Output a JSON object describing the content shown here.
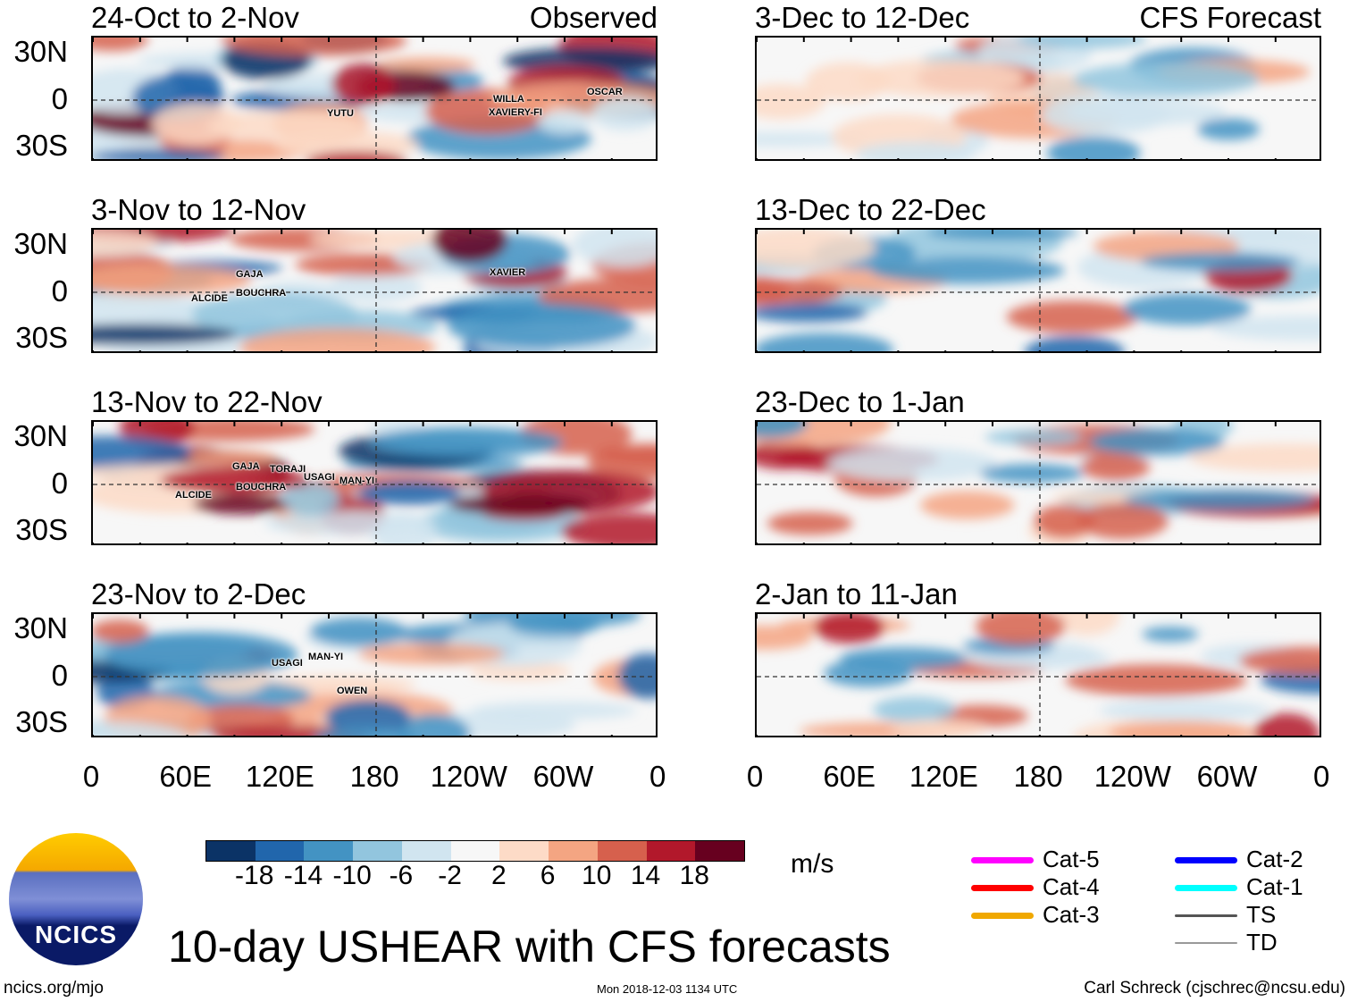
{
  "figure_title": "10-day USHEAR with CFS forecasts",
  "left_header": "Observed",
  "right_header": "CFS Forecast",
  "panels_left": [
    {
      "title": "24-Oct to 2-Nov",
      "storms": [
        "YUTU",
        "WILLA",
        "XAVIERY-FI",
        "OSCAR"
      ]
    },
    {
      "title": "3-Nov to 12-Nov",
      "storms": [
        "GAJA",
        "BOUCHRA",
        "ALCIDE",
        "XAVIER"
      ]
    },
    {
      "title": "13-Nov to 22-Nov",
      "storms": [
        "GAJA",
        "TORAJI",
        "USAGI",
        "MAN-YI",
        "BOUCHRA",
        "ALCIDE"
      ]
    },
    {
      "title": "23-Nov to 2-Dec",
      "storms": [
        "USAGI",
        "MAN-YI",
        "OWEN"
      ]
    }
  ],
  "panels_right": [
    {
      "title": "3-Dec to 12-Dec"
    },
    {
      "title": "13-Dec to 22-Dec"
    },
    {
      "title": "23-Dec to 1-Jan"
    },
    {
      "title": "2-Jan to 11-Jan"
    }
  ],
  "lat_labels": [
    "30N",
    "0",
    "30S"
  ],
  "lon_labels": [
    "0",
    "60E",
    "120E",
    "180",
    "120W",
    "60W",
    "0"
  ],
  "colorbar": {
    "units": "m/s",
    "labels": [
      "-18",
      "-14",
      "-10",
      "-6",
      "-2",
      "2",
      "6",
      "10",
      "14",
      "18"
    ],
    "colors": [
      "#0b3366",
      "#2166ac",
      "#4393c3",
      "#92c5de",
      "#d1e5f0",
      "#f7f7f7",
      "#fddbc7",
      "#f4a582",
      "#d6604d",
      "#b2182b",
      "#67001f"
    ]
  },
  "legend": [
    {
      "label": "Cat-5",
      "color": "#ff00ff"
    },
    {
      "label": "Cat-4",
      "color": "#ff0000"
    },
    {
      "label": "Cat-3",
      "color": "#f0a800"
    },
    {
      "label": "Cat-2",
      "color": "#0000ff"
    },
    {
      "label": "Cat-1",
      "color": "#00ffff"
    },
    {
      "label": "TS",
      "color": "#555555"
    },
    {
      "label": "TD",
      "color": "#999999"
    }
  ],
  "logo_text": "NCICS",
  "footer": {
    "left": "ncics.org/mjo",
    "center": "Mon 2018-12-03 1134 UTC",
    "right": "Carl Schreck (cjschrec@ncsu.edu)"
  }
}
